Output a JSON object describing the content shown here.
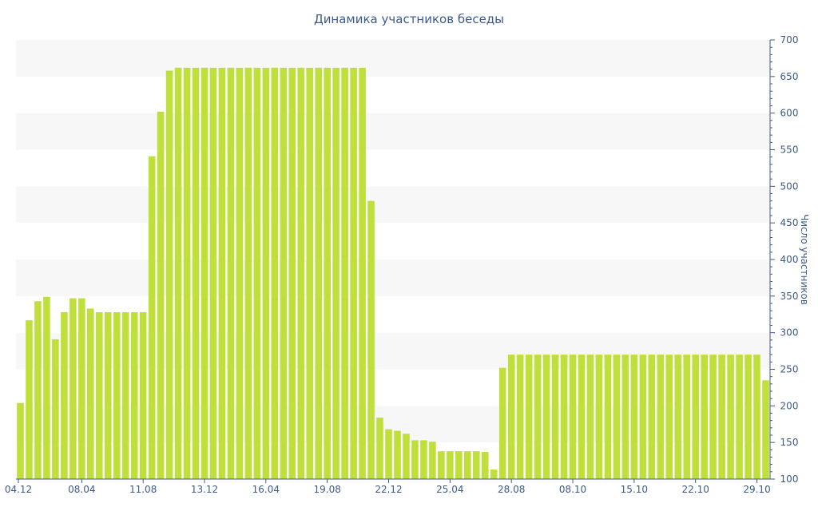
{
  "chart_data": {
    "type": "bar",
    "title": "Динамика участников беседы",
    "xlabel": "",
    "ylabel": "Число участников",
    "ylim": [
      100,
      700
    ],
    "y_ticks": [
      100,
      150,
      200,
      250,
      300,
      350,
      400,
      450,
      500,
      550,
      600,
      650,
      700
    ],
    "y_axis_side": "right",
    "grid": "alternating horizontal bands",
    "x_tick_labels": [
      {
        "index": 0,
        "label": "04.12"
      },
      {
        "index": 7,
        "label": "08.04"
      },
      {
        "index": 14,
        "label": "11.08"
      },
      {
        "index": 21,
        "label": "13.12"
      },
      {
        "index": 28,
        "label": "16.04"
      },
      {
        "index": 35,
        "label": "19.08"
      },
      {
        "index": 42,
        "label": "22.12"
      },
      {
        "index": 49,
        "label": "25.04"
      },
      {
        "index": 56,
        "label": "28.08"
      },
      {
        "index": 63,
        "label": "08.10"
      },
      {
        "index": 70,
        "label": "15.10"
      },
      {
        "index": 77,
        "label": "22.10"
      },
      {
        "index": 84,
        "label": "29.10"
      }
    ],
    "values": [
      204,
      317,
      343,
      349,
      291,
      328,
      347,
      347,
      333,
      328,
      328,
      328,
      328,
      328,
      328,
      541,
      602,
      658,
      662,
      662,
      662,
      662,
      662,
      662,
      662,
      662,
      662,
      662,
      662,
      662,
      662,
      662,
      662,
      662,
      662,
      662,
      662,
      662,
      662,
      662,
      480,
      184,
      168,
      166,
      162,
      153,
      153,
      151,
      138,
      138,
      138,
      138,
      138,
      137,
      113,
      252,
      270,
      270,
      270,
      270,
      270,
      270,
      270,
      270,
      270,
      270,
      270,
      270,
      270,
      270,
      270,
      270,
      270,
      270,
      270,
      270,
      270,
      270,
      270,
      270,
      270,
      270,
      270,
      270,
      270,
      235
    ],
    "colors": {
      "bar": "#bfe03a",
      "axis": "#3d5a8c",
      "band": "#f7f7f7"
    }
  }
}
